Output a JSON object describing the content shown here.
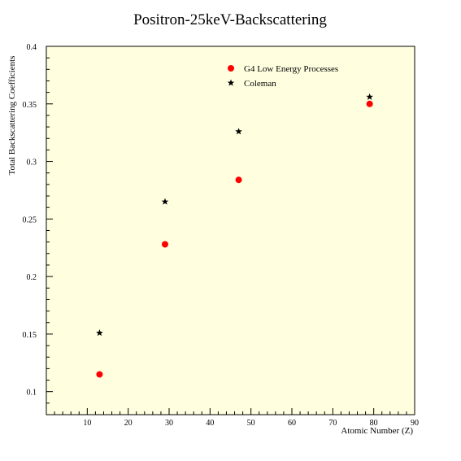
{
  "chart_data": {
    "type": "scatter",
    "title": "Positron-25keV-Backscattering",
    "xlabel": "Atomic Number (Z)",
    "ylabel": "Total Backscattering Coefficients",
    "xlim": [
      0,
      90
    ],
    "ylim": [
      0.08,
      0.4
    ],
    "x_ticks": [
      10,
      20,
      30,
      40,
      50,
      60,
      70,
      80,
      90
    ],
    "y_ticks": [
      0.1,
      0.15,
      0.2,
      0.25,
      0.3,
      0.35,
      0.4
    ],
    "x_tick_labels": [
      "10",
      "20",
      "30",
      "40",
      "50",
      "60",
      "70",
      "80",
      "90"
    ],
    "y_tick_labels": [
      "0.1",
      "0.15",
      "0.2",
      "0.25",
      "0.3",
      "0.35",
      "0.4"
    ],
    "plot_background": "#ffffe0",
    "grid": false,
    "legend_position": "top-right",
    "series": [
      {
        "name": "G4 Low Energy Processes",
        "marker": "circle",
        "color": "#ff0000",
        "x": [
          13,
          29,
          47,
          79
        ],
        "y": [
          0.115,
          0.228,
          0.284,
          0.35
        ]
      },
      {
        "name": "Coleman",
        "marker": "star",
        "color": "#000000",
        "x": [
          13,
          29,
          47,
          79
        ],
        "y": [
          0.151,
          0.265,
          0.326,
          0.356
        ]
      }
    ]
  }
}
